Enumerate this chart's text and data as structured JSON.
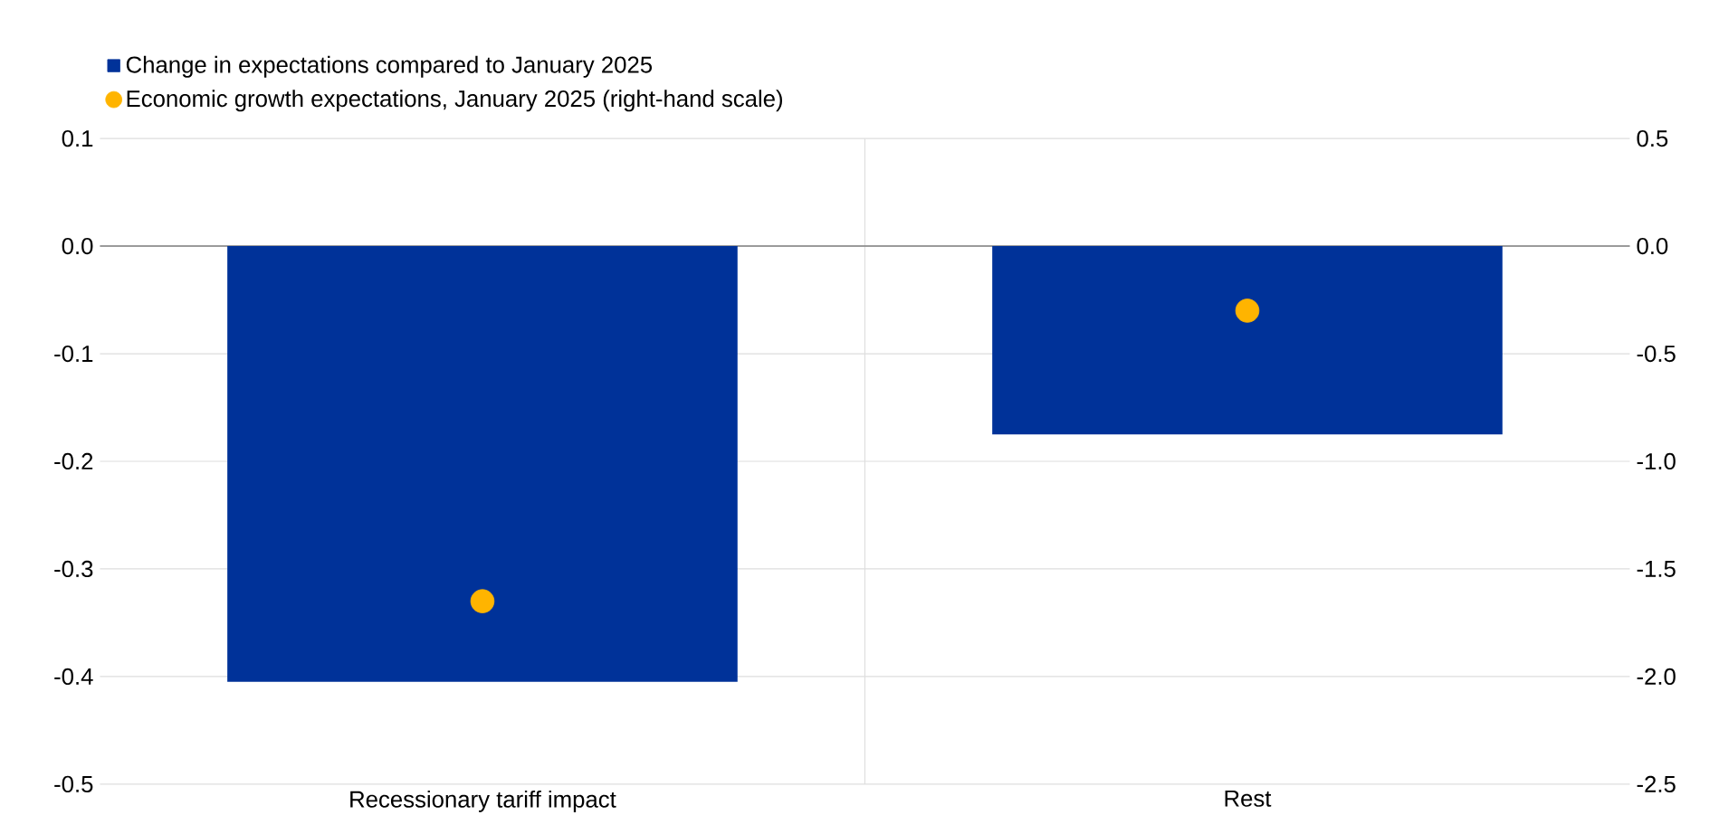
{
  "chart_data": {
    "type": "bar",
    "categories": [
      "Recessionary tariff impact",
      "Rest"
    ],
    "series": [
      {
        "name": "Change in expectations compared to January 2025",
        "color": "#003299",
        "values": [
          -0.405,
          -0.175
        ]
      },
      {
        "name": "Economic growth expectations, January 2025 (right-hand scale)",
        "type": "scatter",
        "axis": "y2",
        "color": "#ffb400",
        "values": [
          -1.65,
          -0.3
        ]
      }
    ],
    "ylim": [
      -0.5,
      0.1
    ],
    "yticks": [
      {
        "value": -0.5,
        "label": "-0.5"
      },
      {
        "value": -0.4,
        "label": "-0.4"
      },
      {
        "value": -0.3,
        "label": "-0.3"
      },
      {
        "value": -0.2,
        "label": "-0.2"
      },
      {
        "value": -0.1,
        "label": "-0.1"
      },
      {
        "value": 0,
        "label": "0.0"
      },
      0.1
    ],
    "y2lim": [
      -2.5,
      0.5
    ],
    "y2ticks": [
      -2.5,
      {
        "value": -2,
        "label": "-2.0"
      },
      -1.5,
      {
        "value": -1,
        "label": "-1.0"
      },
      -0.5,
      {
        "value": 0,
        "label": "0.0"
      },
      0.5
    ],
    "grid": true,
    "legend": "top left"
  }
}
